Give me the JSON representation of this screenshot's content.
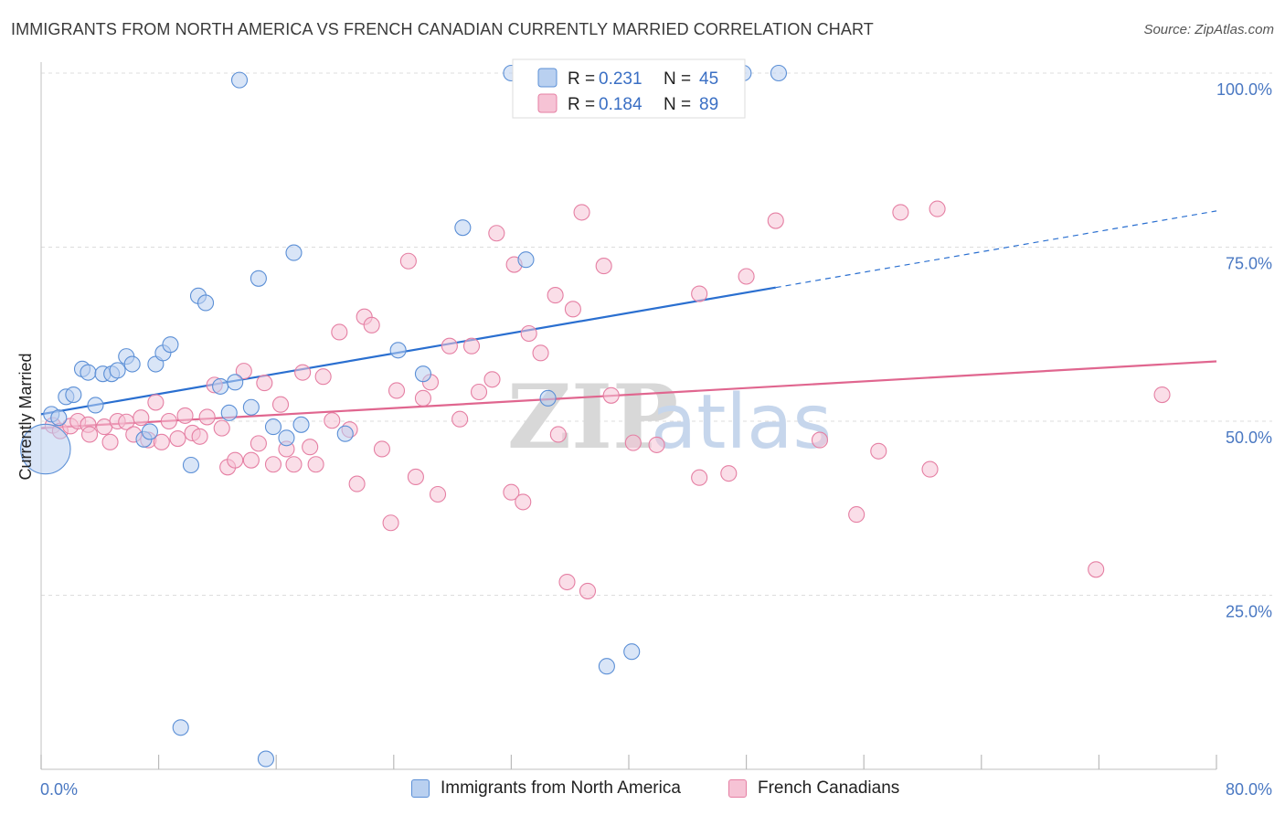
{
  "title": "IMMIGRANTS FROM NORTH AMERICA VS FRENCH CANADIAN CURRENTLY MARRIED CORRELATION CHART",
  "source": "Source: ZipAtlas.com",
  "watermark": {
    "zip": "ZIP",
    "atlas": "atlas"
  },
  "colors": {
    "blue": "#5b8fd6",
    "blue_fill": "#b9d0f0",
    "pink": "#e57fa3",
    "pink_fill": "#f6c3d5",
    "blue_line": "#2a6fd0",
    "pink_line": "#e0668f"
  },
  "legend": {
    "r_label": "R =",
    "n_label": "N =",
    "series1": {
      "r": "0.231",
      "n": "45"
    },
    "series2": {
      "r": "0.184",
      "n": "89"
    }
  },
  "bottom_legend": {
    "series1": "Immigrants from North America",
    "series2": "French Canadians"
  },
  "chart_data": {
    "type": "scatter",
    "title": "IMMIGRANTS FROM NORTH AMERICA VS FRENCH CANADIAN CURRENTLY MARRIED CORRELATION CHART",
    "xlabel": "",
    "ylabel": "Currently Married",
    "xlim": [
      0,
      80
    ],
    "ylim": [
      0,
      103
    ],
    "x_tick_labels": {
      "min": "0.0%",
      "max": "80.0%"
    },
    "y_tick_labels": [
      {
        "value": 25,
        "label": "25.0%"
      },
      {
        "value": 50,
        "label": "50.0%"
      },
      {
        "value": 75,
        "label": "75.0%"
      },
      {
        "value": 100,
        "label": "100.0%"
      }
    ],
    "series": [
      {
        "name": "Immigrants from North America",
        "r": 0.231,
        "n": 45,
        "trend": {
          "x0": 0,
          "y0": 51.0,
          "x1": 50,
          "y1": 69.2,
          "x_end": 80,
          "y_end": 80.2
        },
        "points": [
          [
            0.3,
            46,
            3.2
          ],
          [
            0.7,
            51,
            1
          ],
          [
            1.2,
            50.5,
            1
          ],
          [
            1.7,
            53.5,
            1
          ],
          [
            2.2,
            53.8,
            1
          ],
          [
            2.8,
            57.5,
            1
          ],
          [
            3.2,
            57,
            1
          ],
          [
            3.7,
            52.3,
            1
          ],
          [
            4.2,
            56.8,
            1
          ],
          [
            4.8,
            56.8,
            1
          ],
          [
            5.2,
            57.3,
            1
          ],
          [
            5.8,
            59.3,
            1
          ],
          [
            6.2,
            58.2,
            1
          ],
          [
            7.0,
            47.4,
            1
          ],
          [
            7.4,
            48.5,
            1
          ],
          [
            7.8,
            58.2,
            1
          ],
          [
            8.3,
            59.8,
            1
          ],
          [
            8.8,
            61.0,
            1
          ],
          [
            9.5,
            6.0,
            1
          ],
          [
            10.2,
            43.7,
            1
          ],
          [
            10.7,
            68.0,
            1
          ],
          [
            11.2,
            67.0,
            1
          ],
          [
            12.2,
            55.0,
            1
          ],
          [
            12.8,
            51.2,
            1
          ],
          [
            13.2,
            55.6,
            1
          ],
          [
            13.5,
            99.0,
            1
          ],
          [
            14.3,
            52.0,
            1
          ],
          [
            14.8,
            70.5,
            1
          ],
          [
            15.3,
            1.5,
            1
          ],
          [
            15.8,
            49.2,
            1
          ],
          [
            16.7,
            47.6,
            1
          ],
          [
            17.2,
            74.2,
            1
          ],
          [
            17.7,
            49.5,
            1
          ],
          [
            20.7,
            48.2,
            1
          ],
          [
            24.3,
            60.2,
            1
          ],
          [
            26.0,
            56.8,
            1
          ],
          [
            28.7,
            77.8,
            1
          ],
          [
            32.0,
            100.0,
            1
          ],
          [
            33.0,
            73.2,
            1
          ],
          [
            34.5,
            53.3,
            1
          ],
          [
            38.5,
            14.8,
            1
          ],
          [
            40.2,
            16.9,
            1
          ],
          [
            47.8,
            100.0,
            1
          ],
          [
            50.2,
            100.0,
            1
          ]
        ]
      },
      {
        "name": "French Canadians",
        "r": 0.184,
        "n": 89,
        "trend": {
          "x0": 0,
          "y0": 49.0,
          "x_end": 80,
          "y_end": 58.6
        },
        "points": [
          [
            0.8,
            49.4,
            1
          ],
          [
            1.3,
            48.6,
            1
          ],
          [
            2.0,
            49.3,
            1
          ],
          [
            2.5,
            50.0,
            1
          ],
          [
            3.2,
            49.5,
            1
          ],
          [
            3.3,
            48.1,
            1
          ],
          [
            4.3,
            49.2,
            1
          ],
          [
            4.7,
            47.0,
            1
          ],
          [
            5.2,
            50.0,
            1
          ],
          [
            5.8,
            49.9,
            1
          ],
          [
            6.3,
            48.1,
            1
          ],
          [
            6.8,
            50.5,
            1
          ],
          [
            7.3,
            47.3,
            1
          ],
          [
            7.8,
            52.7,
            1
          ],
          [
            8.2,
            47.0,
            1
          ],
          [
            8.7,
            50.0,
            1
          ],
          [
            9.3,
            47.5,
            1
          ],
          [
            9.8,
            50.8,
            1
          ],
          [
            10.3,
            48.3,
            1
          ],
          [
            10.8,
            47.8,
            1
          ],
          [
            11.3,
            50.6,
            1
          ],
          [
            11.8,
            55.2,
            1
          ],
          [
            12.3,
            49.0,
            1
          ],
          [
            12.7,
            43.4,
            1
          ],
          [
            13.2,
            44.4,
            1
          ],
          [
            13.8,
            57.2,
            1
          ],
          [
            14.3,
            44.4,
            1
          ],
          [
            14.8,
            46.8,
            1
          ],
          [
            15.2,
            55.5,
            1
          ],
          [
            15.8,
            43.8,
            1
          ],
          [
            16.3,
            52.4,
            1
          ],
          [
            16.7,
            46.0,
            1
          ],
          [
            17.2,
            43.8,
            1
          ],
          [
            17.8,
            57.0,
            1
          ],
          [
            18.3,
            46.3,
            1
          ],
          [
            18.7,
            43.8,
            1
          ],
          [
            19.2,
            56.4,
            1
          ],
          [
            19.8,
            50.1,
            1
          ],
          [
            20.3,
            62.8,
            1
          ],
          [
            21.0,
            48.8,
            1
          ],
          [
            21.5,
            41.0,
            1
          ],
          [
            22.0,
            65.0,
            1
          ],
          [
            22.5,
            63.8,
            1
          ],
          [
            23.2,
            46.0,
            1
          ],
          [
            23.8,
            35.4,
            1
          ],
          [
            24.2,
            54.4,
            1
          ],
          [
            25.0,
            73.0,
            1
          ],
          [
            25.5,
            42.0,
            1
          ],
          [
            26.0,
            53.3,
            1
          ],
          [
            26.5,
            55.6,
            1
          ],
          [
            27.0,
            39.5,
            1
          ],
          [
            27.8,
            60.8,
            1
          ],
          [
            28.5,
            50.3,
            1
          ],
          [
            29.3,
            60.8,
            1
          ],
          [
            29.8,
            54.2,
            1
          ],
          [
            30.7,
            56.0,
            1
          ],
          [
            31.0,
            77.0,
            1
          ],
          [
            32.0,
            39.8,
            1
          ],
          [
            32.2,
            72.5,
            1
          ],
          [
            32.8,
            38.4,
            1
          ],
          [
            33.2,
            62.6,
            1
          ],
          [
            34.0,
            59.8,
            1
          ],
          [
            35.0,
            68.1,
            1
          ],
          [
            35.2,
            48.1,
            1
          ],
          [
            35.8,
            26.9,
            1
          ],
          [
            36.2,
            66.1,
            1
          ],
          [
            36.8,
            80.0,
            1
          ],
          [
            37.2,
            25.6,
            1
          ],
          [
            38.3,
            72.3,
            1
          ],
          [
            38.8,
            53.7,
            1
          ],
          [
            40.3,
            46.9,
            1
          ],
          [
            41.9,
            46.6,
            1
          ],
          [
            44.8,
            41.9,
            1
          ],
          [
            44.8,
            68.3,
            1
          ],
          [
            46.8,
            42.5,
            1
          ],
          [
            48.0,
            70.8,
            1
          ],
          [
            50.0,
            78.8,
            1
          ],
          [
            53.0,
            47.3,
            1
          ],
          [
            55.5,
            36.6,
            1
          ],
          [
            57.0,
            45.7,
            1
          ],
          [
            58.5,
            80.0,
            1
          ],
          [
            60.5,
            43.1,
            1
          ],
          [
            61.0,
            80.5,
            1
          ],
          [
            71.8,
            28.7,
            1
          ],
          [
            76.3,
            53.8,
            1
          ]
        ]
      }
    ]
  }
}
